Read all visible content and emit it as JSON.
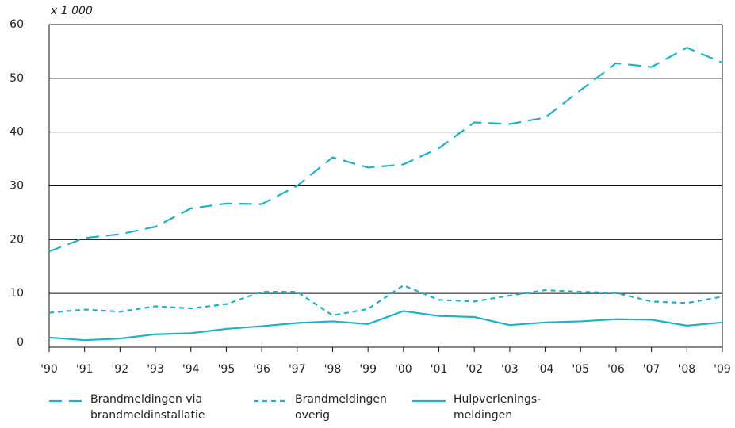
{
  "chart_data": {
    "type": "line",
    "annotation": "x 1 000",
    "categories": [
      "'90",
      "'91",
      "'92",
      "'93",
      "'94",
      "'95",
      "'96",
      "'97",
      "'98",
      "'99",
      "'00",
      "'01",
      "'02",
      "'03",
      "'04",
      "'05",
      "'06",
      "'07",
      "'08",
      "'09"
    ],
    "series": [
      {
        "name": "Brandmeldingen via brandmeldinstallatie",
        "color": "#1fb1c6",
        "style": "long-dash",
        "values": [
          17.8,
          20.3,
          21.0,
          22.4,
          25.8,
          26.7,
          26.6,
          30.0,
          35.3,
          33.4,
          34.0,
          37.0,
          41.8,
          41.5,
          42.7,
          47.8,
          52.8,
          52.1,
          55.7,
          52.9
        ]
      },
      {
        "name": "Brandmeldingen overig",
        "color": "#1fb1c6",
        "style": "short-dash",
        "values": [
          6.4,
          7.0,
          6.6,
          7.6,
          7.2,
          8.0,
          10.3,
          10.3,
          5.9,
          7.1,
          11.5,
          8.8,
          8.5,
          9.6,
          10.6,
          10.3,
          10.1,
          8.5,
          8.2,
          9.4
        ]
      },
      {
        "name": "Hulpverlenings-meldingen",
        "color": "#1fb1c6",
        "style": "solid",
        "values": [
          1.8,
          1.3,
          1.6,
          2.4,
          2.6,
          3.4,
          3.9,
          4.5,
          4.8,
          4.3,
          6.7,
          5.8,
          5.6,
          4.1,
          4.6,
          4.8,
          5.2,
          5.1,
          4.0,
          4.6
        ]
      }
    ],
    "ylim": [
      0,
      60
    ],
    "yticks": [
      0,
      10,
      20,
      30,
      40,
      50,
      60
    ],
    "grid": true,
    "legend": "bottom"
  }
}
